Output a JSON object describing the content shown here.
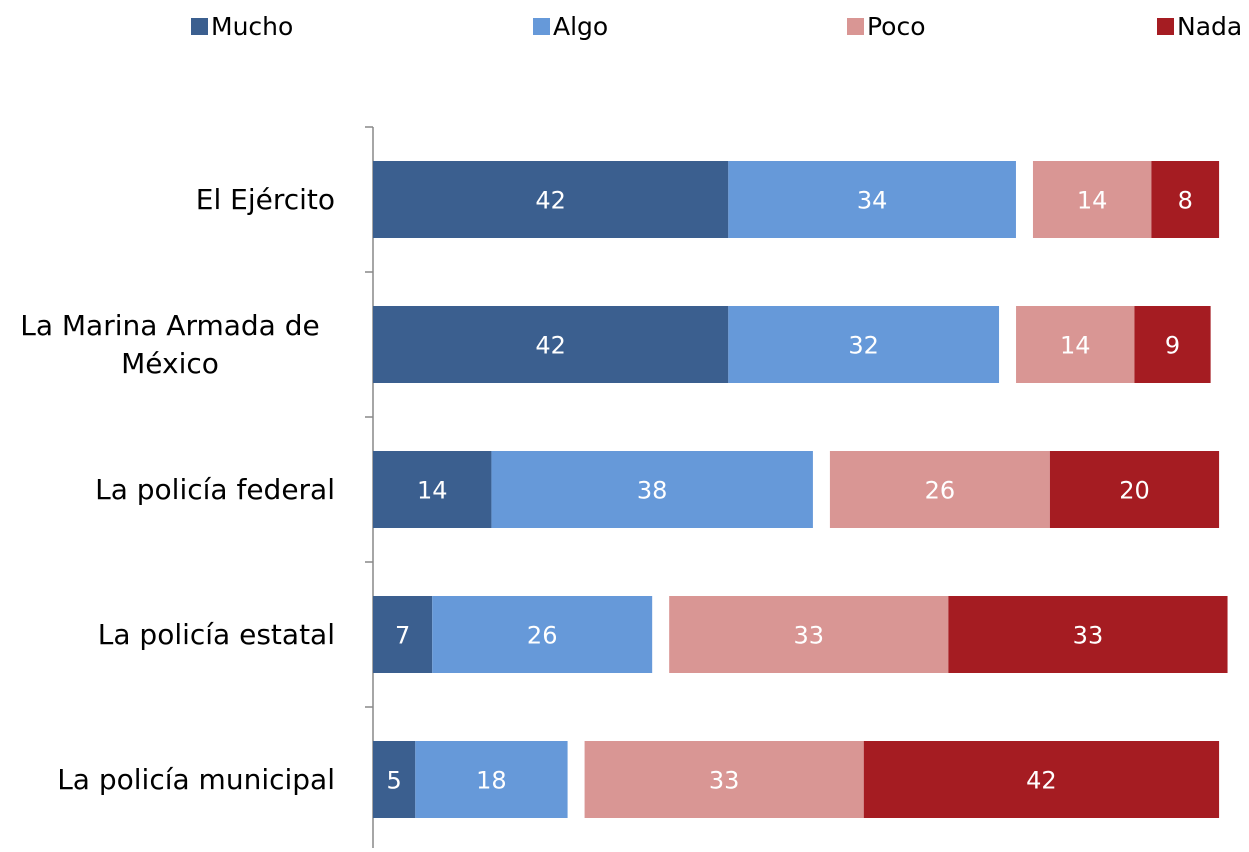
{
  "chart_data": {
    "type": "stacked-bar-horizontal",
    "categories": [
      "El Ejército",
      "La Marina Armada de México",
      "La policía federal",
      "La policía estatal",
      "La policía municipal"
    ],
    "series": [
      {
        "name": "Mucho",
        "color": "#3b5f8f",
        "values": [
          42,
          42,
          14,
          7,
          5
        ]
      },
      {
        "name": "Algo",
        "color": "#6699d9",
        "values": [
          34,
          32,
          38,
          26,
          18
        ]
      },
      {
        "name": "Poco",
        "color": "#d99694",
        "values": [
          14,
          14,
          26,
          33,
          33
        ]
      },
      {
        "name": "Nada",
        "color": "#a51c22",
        "values": [
          8,
          9,
          20,
          33,
          42
        ]
      }
    ]
  }
}
